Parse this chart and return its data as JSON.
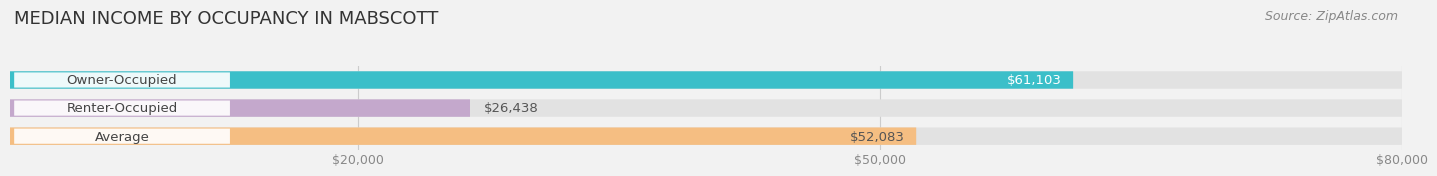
{
  "title": "MEDIAN INCOME BY OCCUPANCY IN MABSCOTT",
  "source": "Source: ZipAtlas.com",
  "categories": [
    "Owner-Occupied",
    "Renter-Occupied",
    "Average"
  ],
  "values": [
    61103,
    26438,
    52083
  ],
  "bar_colors": [
    "#3bbfc9",
    "#c4a8cc",
    "#f5be82"
  ],
  "value_labels": [
    "$61,103",
    "$26,438",
    "$52,083"
  ],
  "value_label_colors": [
    "#ffffff",
    "#555555",
    "#555555"
  ],
  "xlim": [
    0,
    80000
  ],
  "xticks": [
    20000,
    50000,
    80000
  ],
  "xtick_labels": [
    "$20,000",
    "$50,000",
    "$80,000"
  ],
  "bar_height": 0.62,
  "background_color": "#f2f2f2",
  "bar_bg_color": "#e2e2e2",
  "title_fontsize": 13,
  "source_fontsize": 9,
  "label_fontsize": 9.5,
  "value_fontsize": 9.5,
  "tick_fontsize": 9
}
